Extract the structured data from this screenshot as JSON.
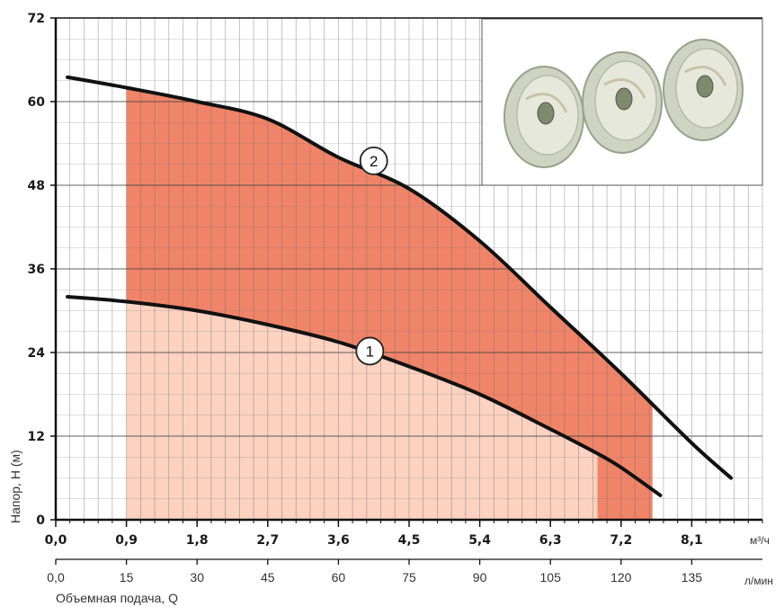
{
  "chart_data": {
    "type": "area",
    "title": "",
    "xlabel": "Объемная подача, Q",
    "ylabel": "Напор, Н (м)",
    "x_unit": "м³/ч",
    "x2_unit": "л/мин",
    "ylim": [
      0,
      72
    ],
    "xlim": [
      0,
      9.0
    ],
    "y_ticks": [
      "0",
      "12",
      "24",
      "36",
      "48",
      "60",
      "72"
    ],
    "x_ticks": [
      "0,0",
      "0,9",
      "1,8",
      "2,7",
      "3,6",
      "4,5",
      "5,4",
      "6,3",
      "7,2",
      "8,1"
    ],
    "x2_ticks": [
      "0,0",
      "15",
      "30",
      "45",
      "60",
      "75",
      "90",
      "105",
      "120",
      "135"
    ],
    "grid": true,
    "series": [
      {
        "name": "1",
        "color": "#111111",
        "x": [
          0.15,
          0.9,
          1.8,
          2.7,
          3.6,
          4.5,
          5.4,
          6.3,
          6.9,
          7.2,
          7.7
        ],
        "y": [
          32,
          31.3,
          30,
          28,
          25.5,
          22,
          18,
          13,
          9.5,
          7.5,
          3.5
        ]
      },
      {
        "name": "2",
        "color": "#111111",
        "x": [
          0.15,
          0.9,
          1.8,
          2.7,
          3.6,
          4.5,
          5.4,
          6.3,
          7.2,
          8.1,
          8.6
        ],
        "y": [
          63.5,
          62,
          60,
          57.5,
          52,
          47.5,
          40,
          30.5,
          21,
          11,
          6
        ]
      }
    ],
    "fills": [
      {
        "region": "between-series",
        "x_range": [
          0.9,
          7.6
        ],
        "color": "#f08468"
      },
      {
        "region": "below-series-1",
        "x_range": [
          0.9,
          6.9
        ],
        "color": "#fcd2c0"
      }
    ],
    "markers": [
      {
        "label": "1",
        "x": 4.0,
        "y": 24.2
      },
      {
        "label": "2",
        "x": 4.05,
        "y": 51.5
      }
    ],
    "inset": {
      "description_icon": "impeller-stack-photo"
    }
  }
}
